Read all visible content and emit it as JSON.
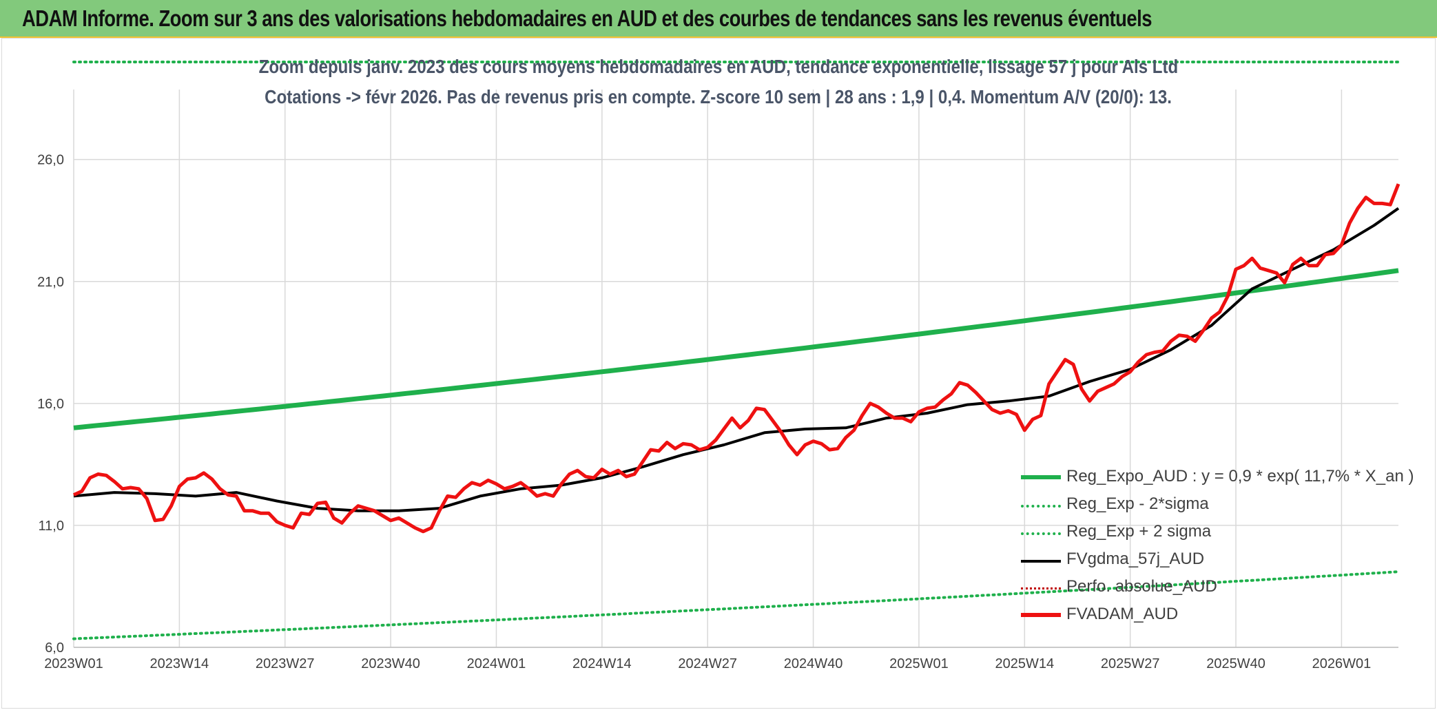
{
  "banner": {
    "title": "ADAM Informe. Zoom sur 3 ans des valorisations hebdomadaires en AUD et des courbes de tendances sans les revenus éventuels"
  },
  "chart_data": {
    "type": "line",
    "title": "Zoom depuis janv. 2023 des cours moyens hebdomadaires en AUD, tendance exponentielle, lissage 57 j pour Als Ltd",
    "subtitle": "Cotations -> févr 2026. Pas de revenus pris en compte. Z-score 10 sem | 28 ans : 1,9 | 0,4. Momentum A/V (20/0): 13.",
    "xlabel": "",
    "ylabel": "",
    "ylim": [
      6,
      30
    ],
    "yticks": [
      "6,0",
      "11,0",
      "16,0",
      "21,0",
      "26,0"
    ],
    "yticks_values": [
      6,
      11,
      16,
      21,
      26
    ],
    "x_categories_labels": [
      "2023W01",
      "2023W14",
      "2023W27",
      "2023W40",
      "2024W01",
      "2024W14",
      "2024W27",
      "2024W40",
      "2025W01",
      "2025W14",
      "2025W27",
      "2025W40",
      "2026W01"
    ],
    "x_label_index": [
      0,
      13,
      26,
      39,
      52,
      65,
      78,
      91,
      104,
      117,
      130,
      143,
      156
    ],
    "n_weeks": 164,
    "grid": true,
    "legend_position": "bottom-right",
    "colors": {
      "reg_expo": "#1fb04c",
      "sigma": "#1fb04c",
      "fvgdma": "#000000",
      "perfo": "#c00000",
      "fvadam": "#ee1111"
    },
    "series": [
      {
        "name": "Reg_Expo_AUD : y = 0,9 * exp( 11,7% *  X_an )",
        "style": "solid-thick",
        "color": "#1fb04c",
        "start_end": [
          [
            0,
            15.0
          ],
          [
            163,
            21.45
          ]
        ]
      },
      {
        "name": "Reg_Exp - 2*sigma",
        "style": "dotted",
        "color": "#1fb04c",
        "start_end": [
          [
            0,
            6.35
          ],
          [
            163,
            9.1
          ]
        ]
      },
      {
        "name": "Reg_Exp + 2 sigma",
        "style": "dotted",
        "color": "#1fb04c",
        "start_end": [
          [
            0,
            30.0
          ],
          [
            163,
            30.0
          ]
        ]
      },
      {
        "name": "FVgdma_57j_AUD",
        "style": "solid",
        "color": "#000000",
        "points": [
          [
            0,
            12.2
          ],
          [
            5,
            12.35
          ],
          [
            10,
            12.3
          ],
          [
            15,
            12.2
          ],
          [
            20,
            12.35
          ],
          [
            25,
            12.0
          ],
          [
            30,
            11.7
          ],
          [
            35,
            11.6
          ],
          [
            40,
            11.6
          ],
          [
            45,
            11.7
          ],
          [
            50,
            12.2
          ],
          [
            55,
            12.5
          ],
          [
            60,
            12.65
          ],
          [
            65,
            12.95
          ],
          [
            70,
            13.4
          ],
          [
            75,
            13.9
          ],
          [
            80,
            14.3
          ],
          [
            85,
            14.8
          ],
          [
            90,
            14.95
          ],
          [
            95,
            15.0
          ],
          [
            100,
            15.4
          ],
          [
            105,
            15.6
          ],
          [
            110,
            15.95
          ],
          [
            115,
            16.1
          ],
          [
            120,
            16.3
          ],
          [
            125,
            16.9
          ],
          [
            130,
            17.4
          ],
          [
            135,
            18.2
          ],
          [
            140,
            19.2
          ],
          [
            145,
            20.7
          ],
          [
            150,
            21.5
          ],
          [
            155,
            22.3
          ],
          [
            160,
            23.3
          ],
          [
            163,
            24.0
          ]
        ]
      },
      {
        "name": "Perfo. absolue_AUD",
        "style": "dotted",
        "color": "#c00000",
        "points": []
      },
      {
        "name": "FVADAM_AUD",
        "style": "solid-thick",
        "color": "#ee1111",
        "points": [
          [
            0,
            12.25
          ],
          [
            1,
            12.4
          ],
          [
            2,
            12.95
          ],
          [
            3,
            13.1
          ],
          [
            4,
            13.05
          ],
          [
            5,
            12.8
          ],
          [
            6,
            12.5
          ],
          [
            7,
            12.55
          ],
          [
            8,
            12.5
          ],
          [
            9,
            12.1
          ],
          [
            10,
            11.2
          ],
          [
            11,
            11.25
          ],
          [
            12,
            11.8
          ],
          [
            13,
            12.6
          ],
          [
            14,
            12.9
          ],
          [
            15,
            12.95
          ],
          [
            16,
            13.15
          ],
          [
            17,
            12.9
          ],
          [
            18,
            12.5
          ],
          [
            19,
            12.25
          ],
          [
            20,
            12.2
          ],
          [
            21,
            11.6
          ],
          [
            22,
            11.6
          ],
          [
            23,
            11.5
          ],
          [
            24,
            11.5
          ],
          [
            25,
            11.15
          ],
          [
            26,
            11.0
          ],
          [
            27,
            10.9
          ],
          [
            28,
            11.5
          ],
          [
            29,
            11.45
          ],
          [
            30,
            11.9
          ],
          [
            31,
            11.95
          ],
          [
            32,
            11.3
          ],
          [
            33,
            11.1
          ],
          [
            34,
            11.5
          ],
          [
            35,
            11.8
          ],
          [
            36,
            11.7
          ],
          [
            37,
            11.6
          ],
          [
            38,
            11.4
          ],
          [
            39,
            11.2
          ],
          [
            40,
            11.3
          ],
          [
            41,
            11.1
          ],
          [
            42,
            10.9
          ],
          [
            43,
            10.75
          ],
          [
            44,
            10.9
          ],
          [
            45,
            11.6
          ],
          [
            46,
            12.2
          ],
          [
            47,
            12.15
          ],
          [
            48,
            12.5
          ],
          [
            49,
            12.75
          ],
          [
            50,
            12.65
          ],
          [
            51,
            12.85
          ],
          [
            52,
            12.7
          ],
          [
            53,
            12.5
          ],
          [
            54,
            12.6
          ],
          [
            55,
            12.75
          ],
          [
            56,
            12.5
          ],
          [
            57,
            12.2
          ],
          [
            58,
            12.3
          ],
          [
            59,
            12.2
          ],
          [
            60,
            12.7
          ],
          [
            61,
            13.1
          ],
          [
            62,
            13.25
          ],
          [
            63,
            13.0
          ],
          [
            64,
            12.95
          ],
          [
            65,
            13.3
          ],
          [
            66,
            13.1
          ],
          [
            67,
            13.25
          ],
          [
            68,
            13.0
          ],
          [
            69,
            13.1
          ],
          [
            70,
            13.6
          ],
          [
            71,
            14.1
          ],
          [
            72,
            14.05
          ],
          [
            73,
            14.4
          ],
          [
            74,
            14.15
          ],
          [
            75,
            14.35
          ],
          [
            76,
            14.3
          ],
          [
            77,
            14.1
          ],
          [
            78,
            14.2
          ],
          [
            79,
            14.5
          ],
          [
            80,
            14.95
          ],
          [
            81,
            15.4
          ],
          [
            82,
            15.0
          ],
          [
            83,
            15.3
          ],
          [
            84,
            15.8
          ],
          [
            85,
            15.75
          ],
          [
            86,
            15.3
          ],
          [
            87,
            14.85
          ],
          [
            88,
            14.3
          ],
          [
            89,
            13.9
          ],
          [
            90,
            14.3
          ],
          [
            91,
            14.45
          ],
          [
            92,
            14.35
          ],
          [
            93,
            14.1
          ],
          [
            94,
            14.15
          ],
          [
            95,
            14.6
          ],
          [
            96,
            14.9
          ],
          [
            97,
            15.5
          ],
          [
            98,
            16.0
          ],
          [
            99,
            15.85
          ],
          [
            100,
            15.6
          ],
          [
            101,
            15.4
          ],
          [
            102,
            15.4
          ],
          [
            103,
            15.25
          ],
          [
            104,
            15.65
          ],
          [
            105,
            15.8
          ],
          [
            106,
            15.85
          ],
          [
            107,
            16.15
          ],
          [
            108,
            16.4
          ],
          [
            109,
            16.85
          ],
          [
            110,
            16.75
          ],
          [
            111,
            16.45
          ],
          [
            112,
            16.1
          ],
          [
            113,
            15.75
          ],
          [
            114,
            15.6
          ],
          [
            115,
            15.7
          ],
          [
            116,
            15.55
          ],
          [
            117,
            14.9
          ],
          [
            118,
            15.35
          ],
          [
            119,
            15.5
          ],
          [
            120,
            16.8
          ],
          [
            121,
            17.3
          ],
          [
            122,
            17.8
          ],
          [
            123,
            17.6
          ],
          [
            124,
            16.6
          ],
          [
            125,
            16.1
          ],
          [
            126,
            16.5
          ],
          [
            127,
            16.65
          ],
          [
            128,
            16.8
          ],
          [
            129,
            17.1
          ],
          [
            130,
            17.3
          ],
          [
            131,
            17.7
          ],
          [
            132,
            18.0
          ],
          [
            133,
            18.1
          ],
          [
            134,
            18.15
          ],
          [
            135,
            18.55
          ],
          [
            136,
            18.8
          ],
          [
            137,
            18.75
          ],
          [
            138,
            18.55
          ],
          [
            139,
            19.0
          ],
          [
            140,
            19.5
          ],
          [
            141,
            19.75
          ],
          [
            142,
            20.4
          ],
          [
            143,
            21.5
          ],
          [
            144,
            21.65
          ],
          [
            145,
            21.95
          ],
          [
            146,
            21.55
          ],
          [
            147,
            21.45
          ],
          [
            148,
            21.35
          ],
          [
            149,
            20.95
          ],
          [
            150,
            21.7
          ],
          [
            151,
            21.95
          ],
          [
            152,
            21.65
          ],
          [
            153,
            21.65
          ],
          [
            154,
            22.1
          ],
          [
            155,
            22.15
          ],
          [
            156,
            22.5
          ],
          [
            157,
            23.4
          ],
          [
            158,
            24.0
          ],
          [
            159,
            24.45
          ],
          [
            160,
            24.2
          ],
          [
            161,
            24.2
          ],
          [
            162,
            24.15
          ],
          [
            163,
            25.0
          ]
        ]
      }
    ]
  }
}
